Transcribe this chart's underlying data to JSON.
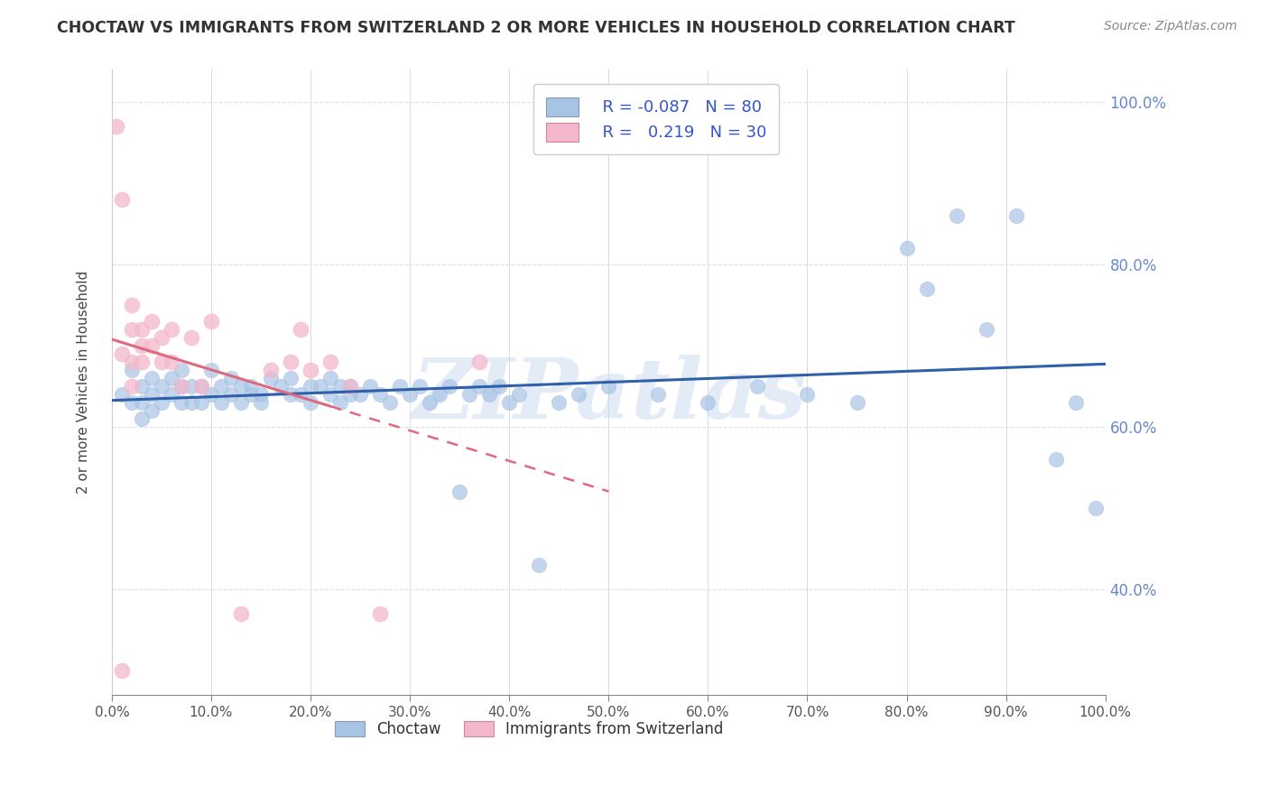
{
  "title": "CHOCTAW VS IMMIGRANTS FROM SWITZERLAND 2 OR MORE VEHICLES IN HOUSEHOLD CORRELATION CHART",
  "source": "Source: ZipAtlas.com",
  "ylabel": "2 or more Vehicles in Household",
  "xlim": [
    0.0,
    1.0
  ],
  "ylim": [
    0.27,
    1.04
  ],
  "legend_labels": [
    "Choctaw",
    "Immigrants from Switzerland"
  ],
  "blue_color": "#a8c4e4",
  "pink_color": "#f4b8cc",
  "blue_line_color": "#3060a8",
  "pink_line_color": "#e06880",
  "R_blue": -0.087,
  "N_blue": 80,
  "R_pink": 0.219,
  "N_pink": 30,
  "blue_scatter_x": [
    0.01,
    0.02,
    0.02,
    0.03,
    0.03,
    0.03,
    0.04,
    0.04,
    0.04,
    0.05,
    0.05,
    0.06,
    0.06,
    0.07,
    0.07,
    0.07,
    0.08,
    0.08,
    0.09,
    0.09,
    0.1,
    0.1,
    0.11,
    0.11,
    0.12,
    0.12,
    0.13,
    0.13,
    0.14,
    0.14,
    0.15,
    0.15,
    0.16,
    0.17,
    0.18,
    0.18,
    0.19,
    0.2,
    0.2,
    0.21,
    0.22,
    0.22,
    0.23,
    0.23,
    0.24,
    0.24,
    0.25,
    0.26,
    0.27,
    0.28,
    0.29,
    0.3,
    0.31,
    0.32,
    0.33,
    0.34,
    0.35,
    0.36,
    0.37,
    0.38,
    0.39,
    0.4,
    0.41,
    0.43,
    0.45,
    0.47,
    0.5,
    0.55,
    0.6,
    0.65,
    0.7,
    0.75,
    0.8,
    0.82,
    0.85,
    0.88,
    0.91,
    0.95,
    0.97,
    0.99
  ],
  "blue_scatter_y": [
    0.64,
    0.63,
    0.67,
    0.65,
    0.63,
    0.61,
    0.64,
    0.66,
    0.62,
    0.65,
    0.63,
    0.66,
    0.64,
    0.65,
    0.63,
    0.67,
    0.65,
    0.63,
    0.65,
    0.63,
    0.67,
    0.64,
    0.65,
    0.63,
    0.66,
    0.64,
    0.65,
    0.63,
    0.65,
    0.64,
    0.64,
    0.63,
    0.66,
    0.65,
    0.64,
    0.66,
    0.64,
    0.65,
    0.63,
    0.65,
    0.64,
    0.66,
    0.65,
    0.63,
    0.65,
    0.64,
    0.64,
    0.65,
    0.64,
    0.63,
    0.65,
    0.64,
    0.65,
    0.63,
    0.64,
    0.65,
    0.52,
    0.64,
    0.65,
    0.64,
    0.65,
    0.63,
    0.64,
    0.43,
    0.63,
    0.64,
    0.65,
    0.64,
    0.63,
    0.65,
    0.64,
    0.63,
    0.82,
    0.77,
    0.86,
    0.72,
    0.86,
    0.56,
    0.63,
    0.5
  ],
  "pink_scatter_x": [
    0.005,
    0.01,
    0.01,
    0.01,
    0.02,
    0.02,
    0.02,
    0.02,
    0.03,
    0.03,
    0.03,
    0.04,
    0.04,
    0.05,
    0.05,
    0.06,
    0.06,
    0.07,
    0.08,
    0.09,
    0.1,
    0.13,
    0.16,
    0.18,
    0.19,
    0.2,
    0.22,
    0.24,
    0.27,
    0.37
  ],
  "pink_scatter_y": [
    0.97,
    0.88,
    0.69,
    0.3,
    0.68,
    0.65,
    0.72,
    0.75,
    0.7,
    0.72,
    0.68,
    0.7,
    0.73,
    0.68,
    0.71,
    0.68,
    0.72,
    0.65,
    0.71,
    0.65,
    0.73,
    0.37,
    0.67,
    0.68,
    0.72,
    0.67,
    0.68,
    0.65,
    0.37,
    0.68
  ],
  "watermark": "ZIPatlas",
  "background_color": "#ffffff",
  "grid_color": "#e0e0e0"
}
